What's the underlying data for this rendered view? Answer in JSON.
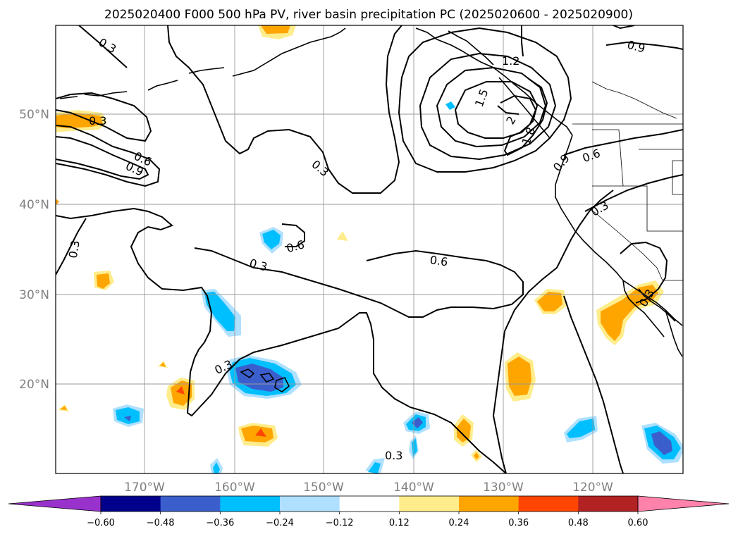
{
  "title": "2025020400 F000 500 hPa PV, river basin precipitation PC (2025020600 - 2025020900)",
  "lat_labels": [
    "50°N",
    "40°N",
    "30°N",
    "20°N"
  ],
  "lon_labels": [
    "170°W",
    "160°W",
    "150°W",
    "140°W",
    "130°W",
    "120°W"
  ],
  "contour_labels": {
    "a": "0.3",
    "b": "0.3",
    "c": "0.6",
    "d": "0.9",
    "e": "0.3",
    "f": "0.3",
    "g": "0.6",
    "h": "0.3",
    "i": "0.6",
    "j": "0.3",
    "k": "0.3",
    "l": "1.2",
    "m": "1.5",
    "n": "1.8",
    "o": "2",
    "p": "0.9",
    "q": "0.6",
    "r": "0.9",
    "s": "0.3",
    "t": "0.3"
  },
  "colorbar": {
    "ticks": [
      "−0.60",
      "−0.48",
      "−0.36",
      "−0.24",
      "−0.12",
      "0.12",
      "0.24",
      "0.36",
      "0.48",
      "0.60"
    ],
    "colors": [
      "#9932cc",
      "#00008b",
      "#3a5fcd",
      "#00bfff",
      "#afe0ff",
      "#ffffff",
      "#ffec8b",
      "#ffa500",
      "#ff4500",
      "#b22222",
      "#ff82ab"
    ]
  },
  "colors": {
    "blue_light": "#afe0ff",
    "blue": "#00bfff",
    "blue_dark": "#3a5fcd",
    "yellow": "#ffec8b",
    "orange": "#ffa500",
    "red": "#ff4500",
    "grid": "#9a9a9a"
  }
}
